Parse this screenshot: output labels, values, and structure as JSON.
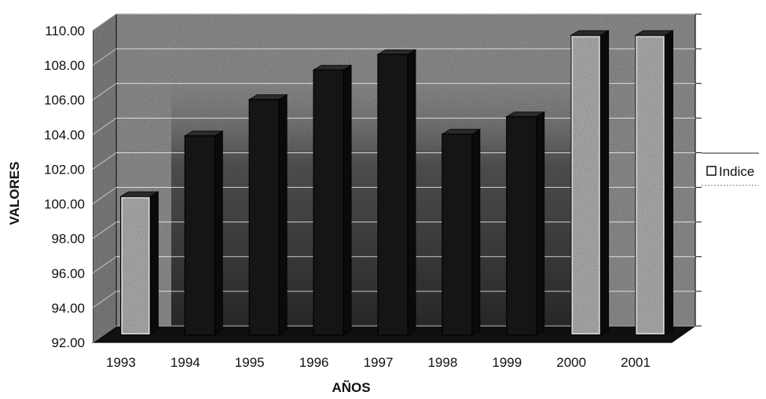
{
  "chart_data": {
    "type": "bar",
    "title": "",
    "xlabel": "AÑOS",
    "ylabel": "VALORES",
    "categories": [
      "1993",
      "1994",
      "1995",
      "1996",
      "1997",
      "1998",
      "1999",
      "2000",
      "2001"
    ],
    "series": [
      {
        "name": "Indice",
        "values": [
          100.0,
          103.5,
          105.6,
          107.3,
          108.2,
          103.6,
          104.6,
          109.3,
          109.3
        ]
      }
    ],
    "ylim": [
      92,
      110
    ],
    "yticks": [
      "92.00",
      "94.00",
      "96.00",
      "98.00",
      "100.00",
      "102.00",
      "104.00",
      "106.00",
      "108.00",
      "110.00"
    ],
    "grid": true,
    "legend_position": "right",
    "three_d": true,
    "colors": {
      "wall": "#8a8a8a",
      "floor": "#101010",
      "bar_front": "#a8a8a8",
      "bar_dark": "#151515",
      "bar_side": "#0a0a0a",
      "bar_top": "#2a2a2a",
      "grid": "#ffffff"
    }
  }
}
